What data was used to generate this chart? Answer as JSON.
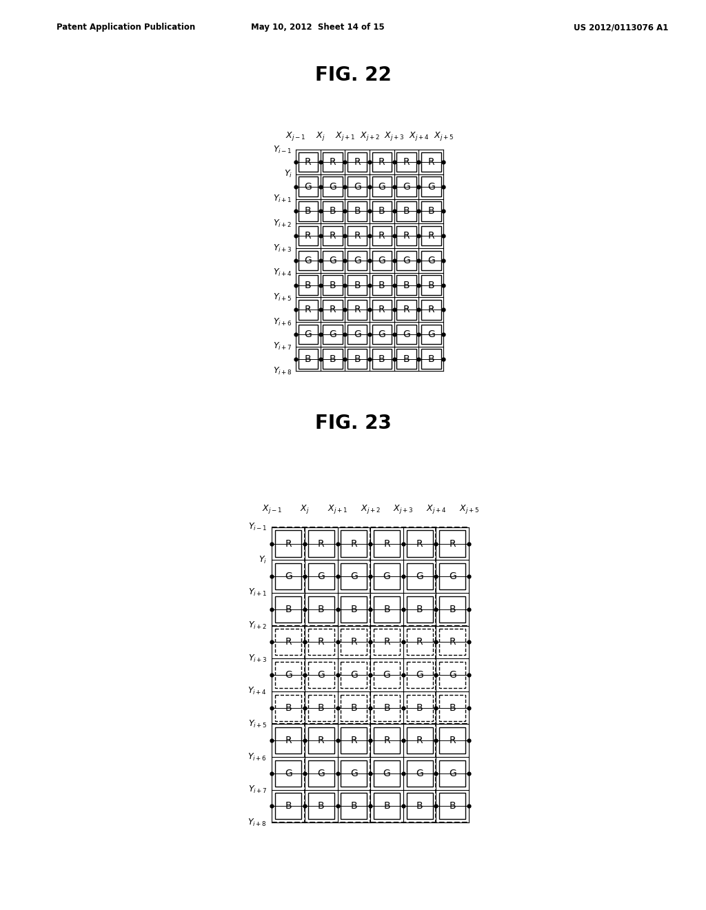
{
  "patent_header_left": "Patent Application Publication",
  "patent_header_mid": "May 10, 2012  Sheet 14 of 15",
  "patent_header_right": "US 2012/0113076 A1",
  "fig22_title": "FIG. 22",
  "fig23_title": "FIG. 23",
  "col_labels": [
    "X_{j-1}",
    "X_j",
    "X_{j+1}",
    "X_{j+2}",
    "X_{j+3}",
    "X_{j+4}",
    "X_{j+5}"
  ],
  "row_labels": [
    "Y_{i-1}",
    "Y_i",
    "Y_{i+1}",
    "Y_{i+2}",
    "Y_{i+3}",
    "Y_{i+4}",
    "Y_{i+5}",
    "Y_{i+6}",
    "Y_{i+7}",
    "Y_{i+8}"
  ],
  "cell_pattern": [
    "R",
    "G",
    "B",
    "R",
    "G",
    "B",
    "R",
    "G",
    "B"
  ],
  "num_cell_cols": 6,
  "num_cell_rows": 9,
  "bg_color": "#ffffff"
}
